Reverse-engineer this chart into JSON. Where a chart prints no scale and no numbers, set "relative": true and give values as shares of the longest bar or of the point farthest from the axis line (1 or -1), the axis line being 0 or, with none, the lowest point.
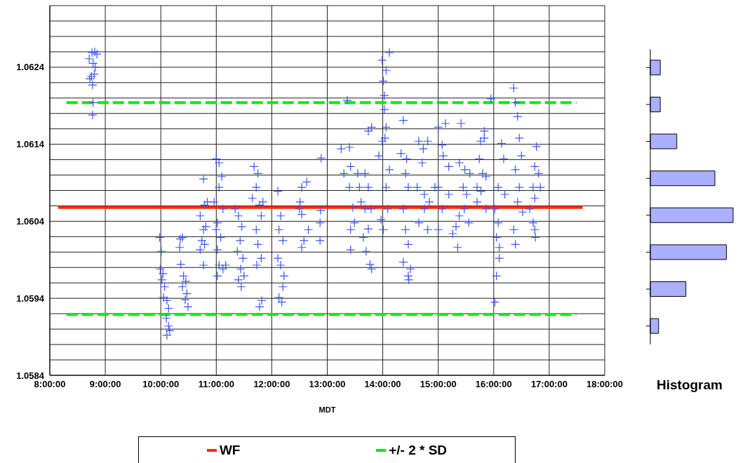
{
  "chart_data": [
    {
      "type": "scatter",
      "xlabel": "MDT",
      "xlim": [
        8,
        18
      ],
      "ylim": [
        1.0584,
        1.0632
      ],
      "xticks": [
        {
          "value": 8,
          "label": "8:00:00"
        },
        {
          "value": 9,
          "label": "9:00:00"
        },
        {
          "value": 10,
          "label": "10:00:00"
        },
        {
          "value": 11,
          "label": "11:00:00"
        },
        {
          "value": 12,
          "label": "12:00:00"
        },
        {
          "value": 13,
          "label": "13:00:00"
        },
        {
          "value": 14,
          "label": "14:00:00"
        },
        {
          "value": 15,
          "label": "15:00:00"
        },
        {
          "value": 16,
          "label": "16:00:00"
        },
        {
          "value": 17,
          "label": "17:00:00"
        },
        {
          "value": 18,
          "label": "18:00:00"
        }
      ],
      "yticks": [
        1.0584,
        {
          "value": 1.0586,
          "label": null
        },
        {
          "value": 1.0588,
          "label": null
        },
        {
          "value": 1.059,
          "label": null
        },
        {
          "value": 1.0592,
          "label": null
        },
        1.0594,
        {
          "value": 1.0596,
          "label": null
        },
        {
          "value": 1.0598,
          "label": null
        },
        {
          "value": 1.06,
          "label": null
        },
        {
          "value": 1.0602,
          "label": null
        },
        1.0604,
        {
          "value": 1.0606,
          "label": null
        },
        {
          "value": 1.0608,
          "label": null
        },
        {
          "value": 1.061,
          "label": null
        },
        {
          "value": 1.0612,
          "label": null
        },
        1.0614,
        {
          "value": 1.0616,
          "label": null
        },
        {
          "value": 1.0618,
          "label": null
        },
        {
          "value": 1.062,
          "label": null
        },
        {
          "value": 1.0622,
          "label": null
        },
        1.0624,
        {
          "value": 1.0626,
          "label": null
        },
        {
          "value": 1.0628,
          "label": null
        },
        {
          "value": 1.063,
          "label": null
        },
        {
          "value": 1.0632,
          "label": null
        }
      ],
      "grid": true,
      "legend": "bottom",
      "series": [
        {
          "type": "scatter",
          "color": "#3a55f0",
          "marker": "cross",
          "x": [
            8.71,
            8.76,
            8.81,
            8.85,
            8.78,
            8.82,
            8.75,
            8.72,
            8.8,
            8.77,
            8.78,
            8.77,
            9.98,
            10.01,
            9.99,
            10.04,
            10.02,
            10.07,
            10.05,
            10.11,
            10.14,
            10.1,
            10.14,
            10.11,
            10.16,
            10.35,
            10.39,
            10.34,
            10.36,
            10.41,
            10.39,
            10.45,
            10.44,
            10.47,
            10.49,
            10.77,
            10.84,
            10.79,
            10.71,
            10.77,
            10.81,
            10.74,
            10.71,
            10.77,
            10.79,
            11.0,
            11.05,
            11.1,
            11.05,
            10.96,
            11.12,
            11.02,
            11.0,
            11.08,
            11.02,
            11.05,
            11.12,
            11.17,
            11.02,
            11.34,
            11.4,
            11.46,
            11.43,
            11.38,
            11.48,
            11.44,
            11.4,
            11.5,
            11.45,
            11.68,
            11.75,
            11.72,
            11.65,
            11.78,
            11.81,
            11.72,
            11.75,
            11.81,
            11.73,
            11.78,
            11.82,
            11.84,
            12.11,
            12.16,
            12.13,
            12.2,
            12.11,
            12.16,
            12.22,
            12.2,
            12.13,
            12.18,
            12.54,
            12.63,
            12.51,
            12.5,
            12.58,
            12.54,
            12.66,
            12.54,
            12.88,
            12.87,
            12.87,
            12.89,
            13.36,
            13.25,
            13.4,
            13.3,
            13.42,
            13.4,
            13.55,
            13.46,
            13.61,
            13.49,
            13.42,
            13.42,
            13.68,
            13.65,
            13.74,
            13.8,
            13.68,
            13.74,
            13.79,
            13.74,
            13.7,
            13.77,
            13.8,
            13.58,
            13.99,
            14.06,
            14.12,
            14.01,
            14.03,
            14.03,
            14.06,
            13.99,
            14.04,
            13.93,
            14.12,
            14.06,
            14.09,
            13.97,
            14.01,
            14.37,
            14.33,
            14.43,
            14.41,
            14.46,
            14.37,
            14.41,
            14.46,
            14.37,
            14.46,
            14.5,
            14.47,
            14.65,
            14.71,
            14.62,
            14.75,
            14.65,
            14.81,
            14.75,
            14.94,
            14.84,
            14.73,
            14.81,
            15.0,
            15.07,
            15.13,
            15.09,
            15.19,
            15.0,
            15.19,
            15.07,
            15.0,
            15.26,
            15.35,
            15.32,
            15.41,
            15.38,
            15.48,
            15.45,
            15.57,
            15.51,
            15.47,
            15.38,
            15.55,
            15.7,
            15.76,
            15.83,
            15.74,
            15.8,
            15.86,
            15.77,
            15.7,
            15.86,
            15.95,
            15.83,
            16.14,
            16.18,
            16.08,
            16.2,
            16.02,
            16.08,
            16.05,
            16.1,
            16.05,
            16.02,
            16.1,
            16.36,
            16.39,
            16.43,
            16.46,
            16.5,
            16.39,
            16.46,
            16.43,
            16.52,
            16.39,
            16.36,
            16.77,
            16.74,
            16.81,
            16.71,
            16.84,
            16.74,
            16.65,
            16.71,
            16.74,
            16.75
          ],
          "values": [
            1.06251,
            1.06259,
            1.0626,
            1.06257,
            1.06245,
            1.0624,
            1.06228,
            1.06225,
            1.06231,
            1.06217,
            1.06194,
            1.06178,
            1.06019,
            1.06001,
            1.05978,
            1.05972,
            1.05964,
            1.05955,
            1.05941,
            1.05937,
            1.05927,
            1.05914,
            1.05904,
            1.05892,
            1.05898,
            1.06017,
            1.06019,
            1.06006,
            1.05984,
            1.05969,
            1.05955,
            1.05962,
            1.05938,
            1.05946,
            1.05929,
            1.06095,
            1.06065,
            1.06061,
            1.06047,
            1.06029,
            1.06033,
            1.06015,
            1.06003,
            1.05983,
            1.0601,
            1.06121,
            1.06116,
            1.06098,
            1.06084,
            1.06065,
            1.06056,
            1.06038,
            1.06029,
            1.06019,
            1.06003,
            1.05983,
            1.05978,
            1.05983,
            1.05969,
            1.06056,
            1.06047,
            1.06033,
            1.06015,
            1.06001,
            1.05992,
            1.05978,
            1.05964,
            1.05969,
            1.05955,
            1.06111,
            1.06102,
            1.06084,
            1.0607,
            1.06061,
            1.06047,
            1.06029,
            1.0601,
            1.05992,
            1.05983,
            1.05929,
            1.05937,
            1.06065,
            1.06079,
            1.06047,
            1.06029,
            1.06015,
            1.05992,
            1.05983,
            1.05969,
            1.05955,
            1.05941,
            1.05935,
            1.06084,
            1.06091,
            1.06065,
            1.06056,
            1.06015,
            1.06006,
            1.06029,
            1.06049,
            1.06054,
            1.06038,
            1.06015,
            1.06122,
            1.06197,
            1.06134,
            1.06136,
            1.06102,
            1.06111,
            1.06084,
            1.06102,
            1.06058,
            1.06065,
            1.06038,
            1.06029,
            1.06003,
            1.06056,
            1.06019,
            1.06157,
            1.06162,
            1.06102,
            1.06084,
            1.06056,
            1.0603,
            1.06001,
            1.05984,
            1.05978,
            1.06084,
            1.06249,
            1.06236,
            1.06259,
            1.06222,
            1.06203,
            1.06185,
            1.06162,
            1.06144,
            1.06148,
            1.06125,
            1.06107,
            1.06084,
            1.06056,
            1.06042,
            1.06029,
            1.06171,
            1.06128,
            1.06121,
            1.06102,
            1.06084,
            1.06056,
            1.06029,
            1.0601,
            1.05987,
            1.05969,
            1.05978,
            1.05964,
            1.06144,
            1.06116,
            1.06084,
            1.06075,
            1.06038,
            1.06029,
            1.06056,
            1.06084,
            1.06065,
            1.06134,
            1.06144,
            1.06162,
            1.06139,
            1.06167,
            1.06125,
            1.06111,
            1.06084,
            1.06075,
            1.06056,
            1.06029,
            1.06024,
            1.06006,
            1.06033,
            1.06167,
            1.06116,
            1.06107,
            1.06084,
            1.06102,
            1.06075,
            1.06056,
            1.06047,
            1.06038,
            1.06084,
            1.06144,
            1.06157,
            1.06121,
            1.06102,
            1.06098,
            1.06079,
            1.06065,
            1.06056,
            1.06199,
            1.06148,
            1.06141,
            1.06121,
            1.06084,
            1.06075,
            1.06056,
            1.06038,
            1.06019,
            1.05992,
            1.05969,
            1.05935,
            1.06006,
            1.06213,
            1.06194,
            1.06176,
            1.06148,
            1.06125,
            1.06107,
            1.06084,
            1.06065,
            1.06052,
            1.0601,
            1.06029,
            1.06137,
            1.06111,
            1.06102,
            1.06084,
            1.06084,
            1.0607,
            1.06056,
            1.06038,
            1.06029,
            1.06019
          ]
        },
        {
          "type": "line",
          "name": "WF",
          "color": "#ff2a00",
          "line_style": "solid",
          "x": [
            8.15,
            17.6
          ],
          "values": [
            1.06058,
            1.06058
          ]
        },
        {
          "type": "line",
          "name": "+/- 2 * SD",
          "color": "#00ee00",
          "line_style": "dashed",
          "x": [
            8.3,
            17.49
          ],
          "values": [
            1.06194,
            1.06194
          ]
        },
        {
          "type": "line",
          "color": "#00ee00",
          "line_style": "dashed",
          "x": [
            8.3,
            17.49
          ],
          "values": [
            1.05919,
            1.05919
          ]
        }
      ]
    },
    {
      "type": "bar",
      "orientation": "horizontal",
      "relative": true,
      "xlabel": "Histogram",
      "color": "#aab0ff",
      "categories": [
        null,
        null,
        null,
        null,
        null,
        null,
        null,
        null
      ],
      "values": [
        0.12,
        0.12,
        0.32,
        0.78,
        1,
        0.92,
        0.43,
        0.1
      ]
    }
  ]
}
